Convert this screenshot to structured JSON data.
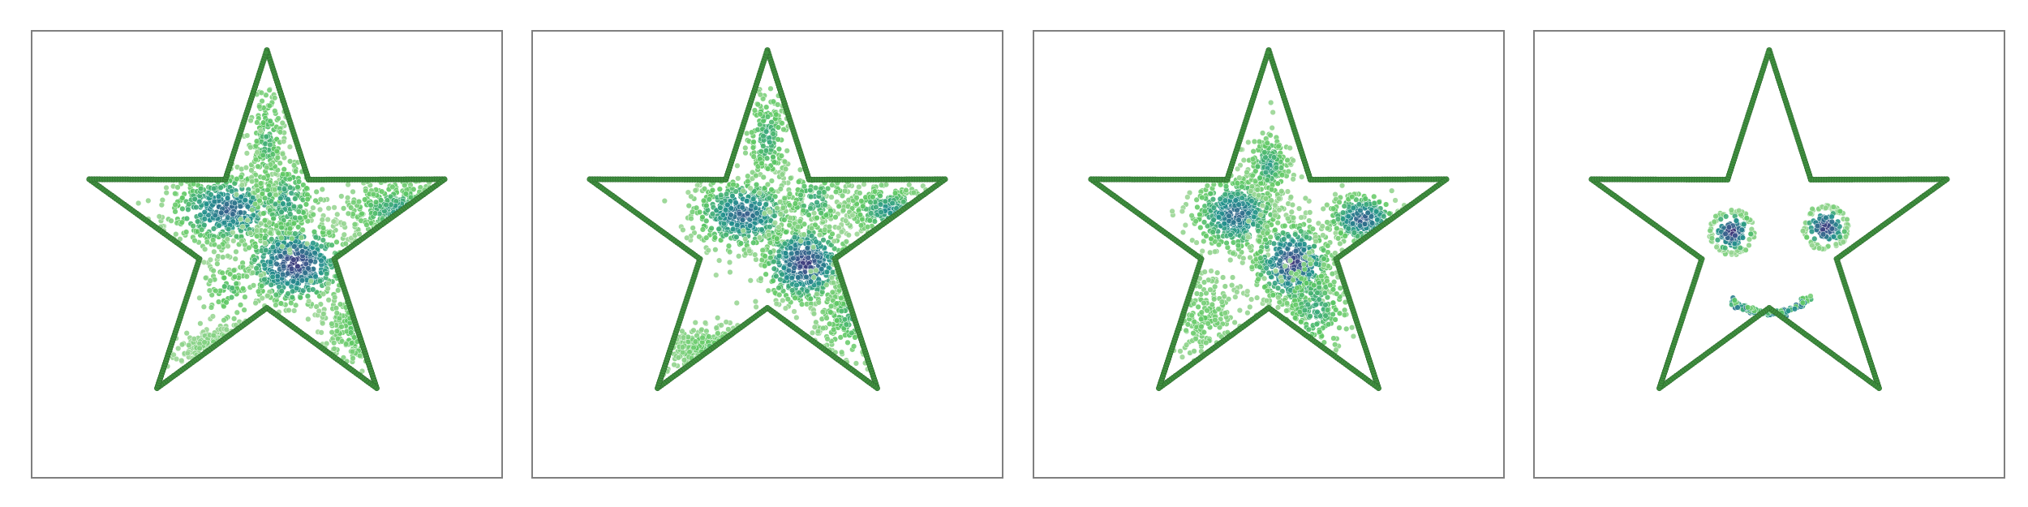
{
  "chart_data": [
    {
      "type": "scatter",
      "title": "",
      "grid": false,
      "axes_visible": false,
      "star_outline": {
        "color": "#3f8f3f",
        "edge_color": "#2e6b2e"
      },
      "colormap": [
        "#440154",
        "#3b528b",
        "#21918c",
        "#5ec962",
        "#a7d9a0"
      ],
      "clusters": [
        {
          "name": "",
          "cx": 0.42,
          "cy": 0.4,
          "sx": 0.07,
          "sy": 0.045,
          "n": 520,
          "density": 0.7
        },
        {
          "name": "",
          "cx": 0.56,
          "cy": 0.52,
          "sx": 0.06,
          "sy": 0.05,
          "n": 520,
          "density": 0.85
        },
        {
          "name": "",
          "cx": 0.5,
          "cy": 0.25,
          "sx": 0.02,
          "sy": 0.07,
          "n": 180,
          "density": 0.35
        },
        {
          "name": "",
          "cx": 0.78,
          "cy": 0.4,
          "sx": 0.06,
          "sy": 0.035,
          "n": 260,
          "density": 0.45
        },
        {
          "name": "",
          "cx": 0.54,
          "cy": 0.38,
          "sx": 0.04,
          "sy": 0.05,
          "n": 180,
          "density": 0.45
        },
        {
          "name": "",
          "cx": 0.42,
          "cy": 0.58,
          "sx": 0.03,
          "sy": 0.04,
          "n": 90,
          "density": 0.3
        },
        {
          "name": "",
          "cx": 0.42,
          "cy": 0.71,
          "sx": 0.05,
          "sy": 0.02,
          "n": 150,
          "density": 0.2
        },
        {
          "name": "",
          "cx": 0.7,
          "cy": 0.66,
          "sx": 0.04,
          "sy": 0.05,
          "n": 150,
          "density": 0.3
        }
      ]
    },
    {
      "type": "scatter",
      "title": "",
      "grid": false,
      "axes_visible": false,
      "star_outline": {
        "color": "#3f8f3f",
        "edge_color": "#2e6b2e"
      },
      "colormap": [
        "#440154",
        "#3b528b",
        "#21918c",
        "#5ec962",
        "#a7d9a0"
      ],
      "clusters": [
        {
          "name": "",
          "cx": 0.45,
          "cy": 0.41,
          "sx": 0.06,
          "sy": 0.045,
          "n": 520,
          "density": 0.7
        },
        {
          "name": "",
          "cx": 0.58,
          "cy": 0.52,
          "sx": 0.05,
          "sy": 0.05,
          "n": 500,
          "density": 0.85
        },
        {
          "name": "",
          "cx": 0.5,
          "cy": 0.24,
          "sx": 0.025,
          "sy": 0.06,
          "n": 180,
          "density": 0.4
        },
        {
          "name": "",
          "cx": 0.76,
          "cy": 0.4,
          "sx": 0.05,
          "sy": 0.03,
          "n": 220,
          "density": 0.5
        },
        {
          "name": "",
          "cx": 0.6,
          "cy": 0.38,
          "sx": 0.04,
          "sy": 0.04,
          "n": 120,
          "density": 0.4
        },
        {
          "name": "",
          "cx": 0.38,
          "cy": 0.71,
          "sx": 0.05,
          "sy": 0.025,
          "n": 180,
          "density": 0.25
        },
        {
          "name": "",
          "cx": 0.68,
          "cy": 0.64,
          "sx": 0.04,
          "sy": 0.05,
          "n": 160,
          "density": 0.35
        }
      ]
    },
    {
      "type": "scatter",
      "title": "",
      "grid": false,
      "axes_visible": false,
      "star_outline": {
        "color": "#3f8f3f",
        "edge_color": "#2e6b2e"
      },
      "colormap": [
        "#440154",
        "#3b528b",
        "#21918c",
        "#5ec962",
        "#a7d9a0"
      ],
      "clusters": [
        {
          "name": "",
          "cx": 0.43,
          "cy": 0.41,
          "sx": 0.05,
          "sy": 0.045,
          "n": 440,
          "density": 0.7
        },
        {
          "name": "",
          "cx": 0.55,
          "cy": 0.52,
          "sx": 0.045,
          "sy": 0.05,
          "n": 460,
          "density": 0.85
        },
        {
          "name": "",
          "cx": 0.7,
          "cy": 0.42,
          "sx": 0.04,
          "sy": 0.03,
          "n": 260,
          "density": 0.75
        },
        {
          "name": "",
          "cx": 0.5,
          "cy": 0.3,
          "sx": 0.025,
          "sy": 0.04,
          "n": 200,
          "density": 0.45
        },
        {
          "name": "",
          "cx": 0.6,
          "cy": 0.62,
          "sx": 0.04,
          "sy": 0.06,
          "n": 200,
          "density": 0.4
        },
        {
          "name": "",
          "cx": 0.36,
          "cy": 0.64,
          "sx": 0.04,
          "sy": 0.05,
          "n": 180,
          "density": 0.2
        }
      ]
    },
    {
      "type": "scatter",
      "title": "",
      "grid": false,
      "axes_visible": false,
      "star_outline": {
        "color": "#3f8f3f",
        "edge_color": "#2e6b2e"
      },
      "colormap": [
        "#440154",
        "#3b528b",
        "#21918c",
        "#5ec962",
        "#a7d9a0"
      ],
      "smiley": {
        "left_eye": {
          "cx": 0.42,
          "cy": 0.45,
          "r": 0.035,
          "ring": 0.045
        },
        "right_eye": {
          "cx": 0.62,
          "cy": 0.44,
          "r": 0.035,
          "ring": 0.045
        },
        "mouth": {
          "cx": 0.5,
          "cy": 0.58,
          "rx": 0.09,
          "ry": 0.05
        }
      }
    }
  ]
}
